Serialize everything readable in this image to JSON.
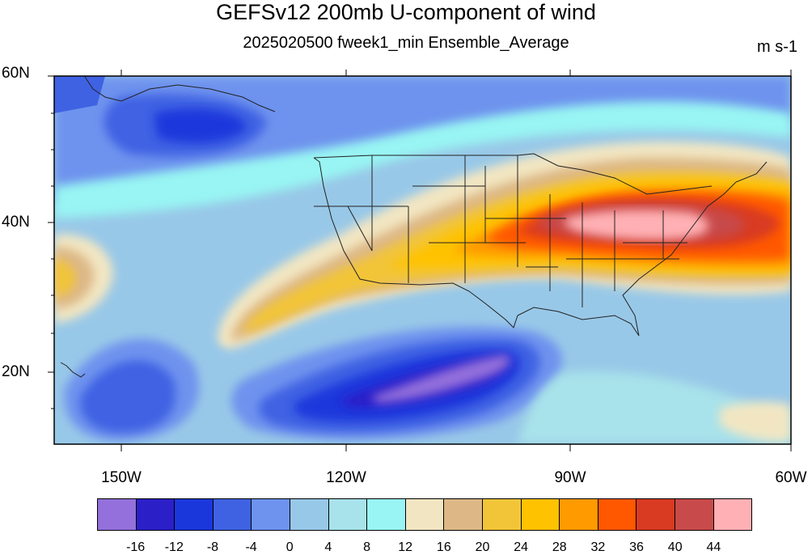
{
  "title": "GEFSv12 200mb U-component of wind",
  "subtitle": "2025020500 fweek1_min Ensemble_Average",
  "units": "m s-1",
  "lat_labels": [
    "60N",
    "40N",
    "20N"
  ],
  "lon_labels": [
    "150W",
    "120W",
    "90W",
    "60W"
  ],
  "colorbar": {
    "colors": [
      "#9370DB",
      "#2B1FC8",
      "#1A37DC",
      "#3F62E3",
      "#6E93EE",
      "#98C8E8",
      "#A8E2EA",
      "#98F5F3",
      "#F2E6C2",
      "#DDB886",
      "#F2C538",
      "#FFC200",
      "#FF9A00",
      "#FF5800",
      "#D83A22",
      "#C84A4A",
      "#FFB0B4"
    ],
    "labels": [
      "-16",
      "-12",
      "-8",
      "-4",
      "0",
      "4",
      "8",
      "12",
      "16",
      "20",
      "24",
      "28",
      "32",
      "36",
      "40",
      "44"
    ]
  },
  "chart_data": {
    "type": "heatmap",
    "variable": "200mb U-component of wind",
    "units": "m s-1",
    "lat_range": [
      10,
      60
    ],
    "lon_range": [
      -160,
      -60
    ],
    "levels": [
      -16,
      -12,
      -8,
      -4,
      0,
      4,
      8,
      12,
      16,
      20,
      24,
      28,
      32,
      36,
      40,
      44
    ],
    "features": {
      "jet_max": "40-44+ m s-1 over the eastern US (~38N, 85W-75W)",
      "subtropical_jet": "24-32 m s-1 from ~25N 135W to 35N 100W",
      "easterly_minimum": "below -16 m s-1 near 20N 115W"
    }
  }
}
